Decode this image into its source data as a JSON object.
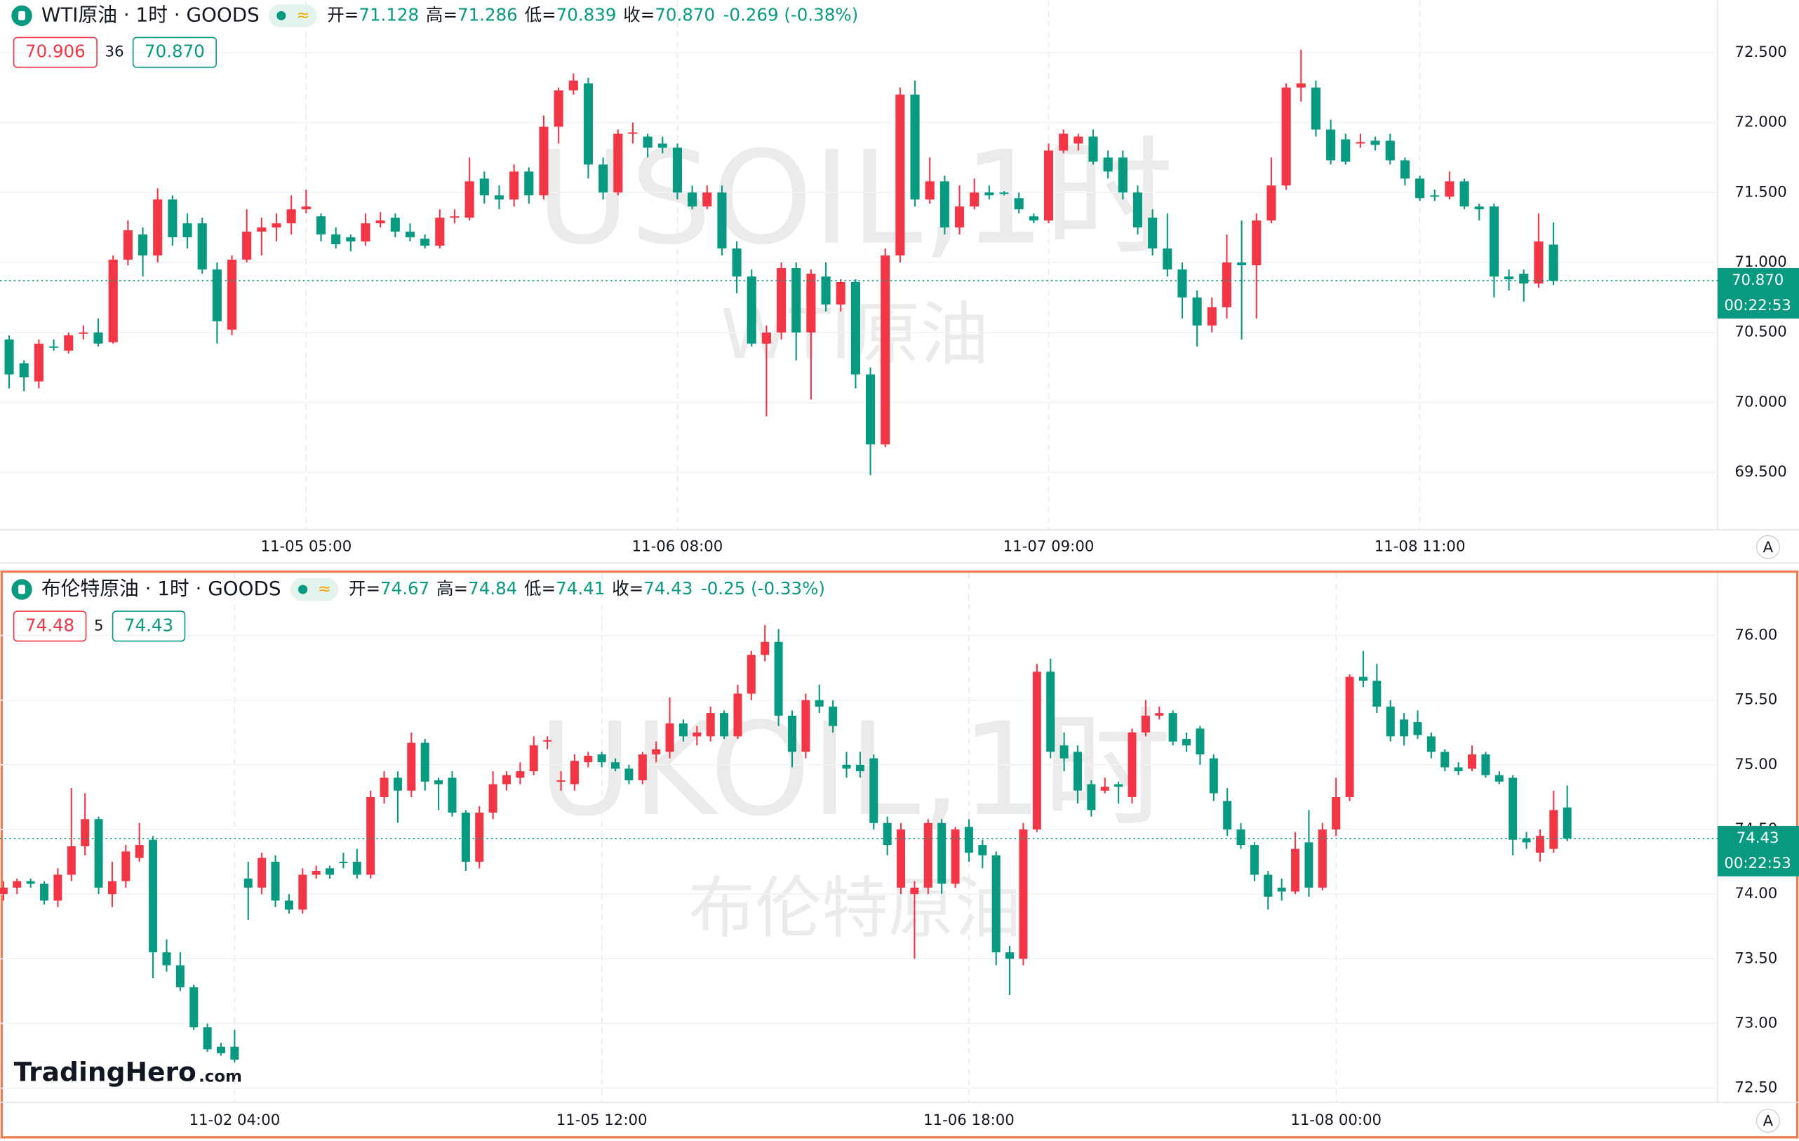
{
  "logo": "TradingHero",
  "logo_suffix": ".com",
  "chart_data": [
    {
      "type": "candlestick",
      "title": "WTI原油 · 1时 · GOODS",
      "status_icon": "≈",
      "legend": [
        {
          "label": "开=",
          "value": "71.128"
        },
        {
          "label": "高=",
          "value": "71.286"
        },
        {
          "label": "低=",
          "value": "70.839"
        },
        {
          "label": "收=",
          "value": "70.870"
        }
      ],
      "change": "-0.269 (-0.38%)",
      "bid": "70.906",
      "spread": "36",
      "ask": "70.870",
      "last_label": "70.870",
      "countdown": "00:22:53",
      "watermark": [
        "USOIL,1时",
        "WTI原油"
      ],
      "scale_button": "A",
      "up_color": "#f23645",
      "down_color": "#089981",
      "grid": true,
      "ylim": [
        69.09,
        72.87
      ],
      "yticks": [
        {
          "value": 69.5,
          "label": "69.500"
        },
        {
          "value": 70,
          "label": "70.000"
        },
        {
          "value": 70.5,
          "label": "70.500"
        },
        {
          "value": 71,
          "label": "71.000"
        },
        {
          "value": 71.5,
          "label": "71.500"
        },
        {
          "value": 72,
          "label": "72.000"
        },
        {
          "value": 72.5,
          "label": "72.500"
        }
      ],
      "categories": [
        null,
        null,
        null,
        null,
        null,
        null,
        null,
        null,
        null,
        null,
        null,
        null,
        null,
        null,
        null,
        null,
        null,
        null,
        null,
        null,
        "11-05 05:00",
        null,
        null,
        null,
        null,
        null,
        null,
        null,
        null,
        null,
        null,
        null,
        null,
        null,
        null,
        null,
        null,
        null,
        null,
        null,
        null,
        null,
        null,
        null,
        null,
        "11-06 08:00",
        null,
        null,
        null,
        null,
        null,
        null,
        null,
        null,
        null,
        null,
        null,
        null,
        null,
        null,
        null,
        null,
        null,
        null,
        null,
        null,
        null,
        null,
        null,
        null,
        "11-07 09:00",
        null,
        null,
        null,
        null,
        null,
        null,
        null,
        null,
        null,
        null,
        null,
        null,
        null,
        null,
        null,
        null,
        null,
        null,
        null,
        null,
        null,
        null,
        null,
        null,
        "11-08 11:00",
        null,
        null,
        null,
        null,
        null,
        null,
        null,
        null,
        null
      ],
      "open": [
        70.45,
        70.28,
        70.15,
        70.4,
        70.37,
        70.49,
        70.5,
        70.43,
        71.02,
        71.2,
        71.05,
        71.45,
        71.28,
        71.28,
        70.95,
        70.52,
        71.02,
        71.22,
        71.25,
        71.28,
        71.38,
        71.33,
        71.2,
        71.18,
        71.15,
        71.28,
        71.32,
        71.22,
        71.17,
        71.12,
        71.32,
        71.32,
        71.6,
        71.48,
        71.45,
        71.65,
        71.48,
        71.97,
        72.23,
        72.28,
        71.7,
        71.5,
        71.92,
        71.9,
        71.85,
        71.82,
        71.5,
        71.4,
        71.5,
        71.1,
        70.9,
        70.42,
        70.5,
        70.96,
        70.5,
        70.9,
        70.7,
        70.86,
        70.2,
        69.7,
        71.05,
        72.2,
        71.45,
        71.58,
        71.25,
        71.4,
        71.5,
        71.5,
        71.46,
        71.33,
        71.3,
        71.8,
        71.85,
        71.9,
        71.75,
        71.75,
        71.5,
        71.32,
        71.1,
        70.95,
        70.75,
        70.55,
        70.68,
        71.0,
        70.98,
        71.3,
        71.55,
        72.25,
        72.25,
        71.95,
        71.88,
        71.85,
        71.87,
        71.87,
        71.73,
        71.6,
        71.48,
        71.47,
        71.58,
        71.4,
        71.4,
        70.9,
        70.92,
        70.85,
        71.128
      ],
      "high": [
        70.48,
        70.3,
        70.45,
        70.45,
        70.5,
        70.55,
        70.6,
        71.05,
        71.3,
        71.25,
        71.53,
        71.48,
        71.35,
        71.32,
        71.0,
        71.05,
        71.38,
        71.32,
        71.35,
        71.48,
        71.52,
        71.35,
        71.25,
        71.2,
        71.35,
        71.36,
        71.35,
        71.28,
        71.2,
        71.38,
        71.38,
        71.75,
        71.65,
        71.55,
        71.7,
        71.68,
        72.05,
        72.25,
        72.35,
        72.32,
        71.75,
        71.95,
        72.0,
        71.92,
        71.9,
        71.85,
        71.55,
        71.55,
        71.55,
        71.15,
        70.95,
        70.55,
        71.0,
        71.0,
        70.95,
        71.0,
        70.88,
        70.88,
        70.25,
        71.1,
        72.25,
        72.3,
        71.75,
        71.62,
        71.55,
        71.6,
        71.55,
        71.51,
        71.5,
        71.35,
        71.85,
        71.95,
        71.92,
        71.95,
        71.8,
        71.8,
        71.55,
        71.38,
        71.35,
        71.0,
        70.8,
        70.75,
        71.2,
        71.3,
        71.35,
        71.75,
        72.28,
        72.52,
        72.3,
        72.02,
        71.92,
        71.92,
        71.9,
        71.92,
        71.75,
        71.62,
        71.52,
        71.65,
        71.6,
        71.42,
        71.42,
        70.95,
        70.95,
        71.35,
        71.286
      ],
      "low": [
        70.1,
        70.08,
        70.1,
        70.37,
        70.35,
        70.45,
        70.4,
        70.42,
        70.98,
        70.9,
        71.0,
        71.12,
        71.1,
        70.92,
        70.42,
        70.48,
        71.0,
        71.05,
        71.15,
        71.2,
        71.35,
        71.15,
        71.1,
        71.08,
        71.12,
        71.25,
        71.18,
        71.15,
        71.1,
        71.1,
        71.28,
        71.3,
        71.42,
        71.38,
        71.4,
        71.42,
        71.45,
        71.85,
        72.2,
        71.6,
        71.45,
        71.48,
        71.85,
        71.75,
        71.78,
        71.45,
        71.38,
        71.38,
        71.05,
        70.78,
        70.4,
        69.9,
        70.45,
        70.3,
        70.02,
        70.65,
        70.65,
        70.1,
        69.48,
        69.68,
        71.0,
        71.4,
        71.42,
        71.2,
        71.2,
        71.38,
        71.45,
        71.48,
        71.35,
        71.28,
        71.28,
        71.78,
        71.8,
        71.7,
        71.6,
        71.45,
        71.2,
        71.05,
        70.9,
        70.6,
        70.4,
        70.5,
        70.6,
        70.45,
        70.6,
        71.28,
        71.52,
        72.15,
        71.9,
        71.7,
        71.7,
        71.82,
        71.8,
        71.7,
        71.55,
        71.44,
        71.44,
        71.45,
        71.38,
        71.3,
        70.75,
        70.8,
        70.72,
        70.82,
        70.839
      ],
      "close": [
        70.2,
        70.18,
        70.42,
        70.39,
        70.48,
        70.5,
        70.42,
        71.02,
        71.23,
        71.05,
        71.45,
        71.18,
        71.18,
        70.95,
        70.58,
        71.02,
        71.22,
        71.25,
        71.28,
        71.38,
        71.4,
        71.2,
        71.13,
        71.15,
        71.28,
        71.3,
        71.22,
        71.18,
        71.12,
        71.32,
        71.33,
        71.58,
        71.48,
        71.45,
        71.65,
        71.48,
        71.97,
        72.23,
        72.3,
        71.7,
        71.5,
        71.92,
        71.93,
        71.82,
        71.82,
        71.5,
        71.4,
        71.5,
        71.1,
        70.9,
        70.42,
        70.5,
        70.96,
        70.5,
        70.92,
        70.7,
        70.86,
        70.2,
        69.7,
        71.05,
        72.2,
        71.45,
        71.58,
        71.25,
        71.4,
        71.5,
        71.48,
        71.49,
        71.38,
        71.3,
        71.8,
        71.92,
        71.9,
        71.72,
        71.65,
        71.5,
        71.25,
        71.1,
        70.95,
        70.75,
        70.55,
        70.68,
        71.0,
        70.98,
        71.3,
        71.55,
        72.25,
        72.28,
        71.95,
        71.73,
        71.72,
        71.86,
        71.84,
        71.73,
        71.6,
        71.46,
        71.47,
        71.58,
        71.4,
        71.38,
        70.9,
        70.88,
        70.85,
        71.15,
        70.87
      ]
    },
    {
      "type": "candlestick",
      "title": "布伦特原油 · 1时 · GOODS",
      "status_icon": "≈",
      "legend": [
        {
          "label": "开=",
          "value": "74.67"
        },
        {
          "label": "高=",
          "value": "74.84"
        },
        {
          "label": "低=",
          "value": "74.41"
        },
        {
          "label": "收=",
          "value": "74.43"
        }
      ],
      "change": "-0.25 (-0.33%)",
      "bid": "74.48",
      "spread": "5",
      "ask": "74.43",
      "last_label": "74.43",
      "countdown": "00:22:53",
      "watermark": [
        "UKOIL,1时",
        "布伦特原油"
      ],
      "scale_button": "A",
      "up_color": "#f23645",
      "down_color": "#089981",
      "grid": true,
      "ylim": [
        72.39,
        76.48
      ],
      "yticks": [
        {
          "value": 72.5,
          "label": "72.50"
        },
        {
          "value": 73,
          "label": "73.00"
        },
        {
          "value": 73.5,
          "label": "73.50"
        },
        {
          "value": 74,
          "label": "74.00"
        },
        {
          "value": 74.5,
          "label": "74.50"
        },
        {
          "value": 75,
          "label": "75.00"
        },
        {
          "value": 75.5,
          "label": "75.50"
        },
        {
          "value": 76,
          "label": "76.00"
        }
      ],
      "categories": [
        null,
        null,
        null,
        null,
        null,
        null,
        null,
        null,
        null,
        null,
        null,
        null,
        null,
        null,
        null,
        null,
        null,
        "11-02 04:00",
        null,
        null,
        null,
        null,
        null,
        null,
        null,
        null,
        null,
        null,
        null,
        null,
        null,
        null,
        null,
        null,
        null,
        null,
        null,
        null,
        null,
        null,
        null,
        null,
        null,
        null,
        "11-05 12:00",
        null,
        null,
        null,
        null,
        null,
        null,
        null,
        null,
        null,
        null,
        null,
        null,
        null,
        null,
        null,
        null,
        null,
        null,
        null,
        null,
        null,
        null,
        null,
        null,
        null,
        null,
        "11-06 18:00",
        null,
        null,
        null,
        null,
        null,
        null,
        null,
        null,
        null,
        null,
        null,
        null,
        null,
        null,
        null,
        null,
        null,
        null,
        null,
        null,
        null,
        null,
        null,
        null,
        null,
        null,
        "11-08 00:00",
        null,
        null,
        null,
        null,
        null,
        null,
        null,
        null,
        null,
        null,
        null,
        null,
        null,
        null,
        null,
        null,
        null
      ],
      "open": [
        74.0,
        74.05,
        74.1,
        74.08,
        73.95,
        74.15,
        74.37,
        74.58,
        74.0,
        74.1,
        74.28,
        74.42,
        73.55,
        73.45,
        73.28,
        72.97,
        72.82,
        72.82,
        74.12,
        74.05,
        74.25,
        73.95,
        73.88,
        74.15,
        74.2,
        74.25,
        74.25,
        74.15,
        74.75,
        74.9,
        74.8,
        75.17,
        74.88,
        74.9,
        74.63,
        74.25,
        74.63,
        74.85,
        74.9,
        74.95,
        75.18,
        74.87,
        74.85,
        75.02,
        75.08,
        75.02,
        74.97,
        74.88,
        75.08,
        75.1,
        75.32,
        75.22,
        75.22,
        75.4,
        75.22,
        75.55,
        75.85,
        75.95,
        75.38,
        75.1,
        75.5,
        75.45,
        75.0,
        75.0,
        75.05,
        74.55,
        74.05,
        74.0,
        74.05,
        74.55,
        74.08,
        74.52,
        74.38,
        74.3,
        73.55,
        73.5,
        74.5,
        75.72,
        75.15,
        75.1,
        74.85,
        74.8,
        74.85,
        74.75,
        75.25,
        75.38,
        75.4,
        75.2,
        75.28,
        75.05,
        74.72,
        74.5,
        74.38,
        74.15,
        74.05,
        74.02,
        74.4,
        74.05,
        74.5,
        74.75,
        75.68,
        75.65,
        75.45,
        75.35,
        75.33,
        75.22,
        75.1,
        74.98,
        74.97,
        75.08,
        74.92,
        74.9,
        74.43,
        74.32,
        74.35,
        74.67
      ],
      "high": [
        74.1,
        74.12,
        74.12,
        74.1,
        74.2,
        74.82,
        74.78,
        74.6,
        74.25,
        74.38,
        74.55,
        74.45,
        73.65,
        73.55,
        73.3,
        73.0,
        72.85,
        72.95,
        74.25,
        74.32,
        74.3,
        74.0,
        74.2,
        74.22,
        74.22,
        74.32,
        74.35,
        74.8,
        74.95,
        74.95,
        75.25,
        75.2,
        74.9,
        74.95,
        74.65,
        74.68,
        74.95,
        74.95,
        75.02,
        75.22,
        75.22,
        74.95,
        75.08,
        75.1,
        75.1,
        75.05,
        75.0,
        75.1,
        75.18,
        75.52,
        75.35,
        75.3,
        75.45,
        75.42,
        75.62,
        75.88,
        76.08,
        76.05,
        75.42,
        75.55,
        75.62,
        75.5,
        75.1,
        75.1,
        75.08,
        74.6,
        74.55,
        74.1,
        74.58,
        74.58,
        74.52,
        74.58,
        74.42,
        74.33,
        73.6,
        74.55,
        75.78,
        75.82,
        75.25,
        75.15,
        74.88,
        74.9,
        74.87,
        75.28,
        75.5,
        75.45,
        75.42,
        75.25,
        75.3,
        75.08,
        74.82,
        74.55,
        74.4,
        74.18,
        74.12,
        74.48,
        74.65,
        74.55,
        74.9,
        75.7,
        75.88,
        75.78,
        75.5,
        75.4,
        75.42,
        75.25,
        75.12,
        75.02,
        75.15,
        75.1,
        74.95,
        74.92,
        74.48,
        74.5,
        74.8,
        74.84
      ],
      "low": [
        73.95,
        74.0,
        74.05,
        73.92,
        73.9,
        74.1,
        74.3,
        74.0,
        73.9,
        74.05,
        74.25,
        73.35,
        73.4,
        73.25,
        72.95,
        72.78,
        72.75,
        72.7,
        73.8,
        74.0,
        73.9,
        73.85,
        73.85,
        74.12,
        74.12,
        74.2,
        74.12,
        74.12,
        74.7,
        74.55,
        74.75,
        74.8,
        74.65,
        74.6,
        74.18,
        74.2,
        74.58,
        74.8,
        74.85,
        74.92,
        75.12,
        74.8,
        74.8,
        74.98,
        74.98,
        74.95,
        74.85,
        74.85,
        75.02,
        75.05,
        75.18,
        75.15,
        75.18,
        75.2,
        75.2,
        75.5,
        75.8,
        75.3,
        74.98,
        75.05,
        75.4,
        75.25,
        74.9,
        74.9,
        74.5,
        74.3,
        74.0,
        73.5,
        74.0,
        74.0,
        74.05,
        74.25,
        74.2,
        73.45,
        73.22,
        73.45,
        74.48,
        75.05,
        74.95,
        74.7,
        74.6,
        74.78,
        74.7,
        74.7,
        75.22,
        75.35,
        75.15,
        75.1,
        75.0,
        74.72,
        74.45,
        74.35,
        74.1,
        73.88,
        73.95,
        74.0,
        73.98,
        74.03,
        74.45,
        74.72,
        75.6,
        75.4,
        75.18,
        75.15,
        75.2,
        75.05,
        74.95,
        74.92,
        74.95,
        74.9,
        74.85,
        74.3,
        74.35,
        74.25,
        74.32,
        74.41
      ],
      "close": [
        74.05,
        74.1,
        74.08,
        73.95,
        74.15,
        74.37,
        74.58,
        74.05,
        74.1,
        74.33,
        74.38,
        73.55,
        73.45,
        73.28,
        72.97,
        72.8,
        72.77,
        72.72,
        74.05,
        74.28,
        73.95,
        73.88,
        74.15,
        74.18,
        74.15,
        74.24,
        74.15,
        74.75,
        74.9,
        74.8,
        75.17,
        74.87,
        74.85,
        74.63,
        74.25,
        74.63,
        74.85,
        74.92,
        74.95,
        75.15,
        75.19,
        74.88,
        75.03,
        75.07,
        75.02,
        74.97,
        74.88,
        75.08,
        75.12,
        75.32,
        75.22,
        75.25,
        75.4,
        75.22,
        75.55,
        75.85,
        75.95,
        75.38,
        75.1,
        75.5,
        75.45,
        75.3,
        74.97,
        74.95,
        74.55,
        74.38,
        74.5,
        74.05,
        74.55,
        74.08,
        74.5,
        74.32,
        74.3,
        73.55,
        73.5,
        74.5,
        75.72,
        75.1,
        75.05,
        74.8,
        74.65,
        74.83,
        74.83,
        75.25,
        75.38,
        75.4,
        75.18,
        75.15,
        75.08,
        74.78,
        74.5,
        74.38,
        74.15,
        73.98,
        74.02,
        74.35,
        74.05,
        74.5,
        74.75,
        75.68,
        75.65,
        75.45,
        75.22,
        75.22,
        75.23,
        75.1,
        74.98,
        74.95,
        75.08,
        74.92,
        74.87,
        74.42,
        74.4,
        74.45,
        74.65,
        74.43
      ]
    }
  ]
}
